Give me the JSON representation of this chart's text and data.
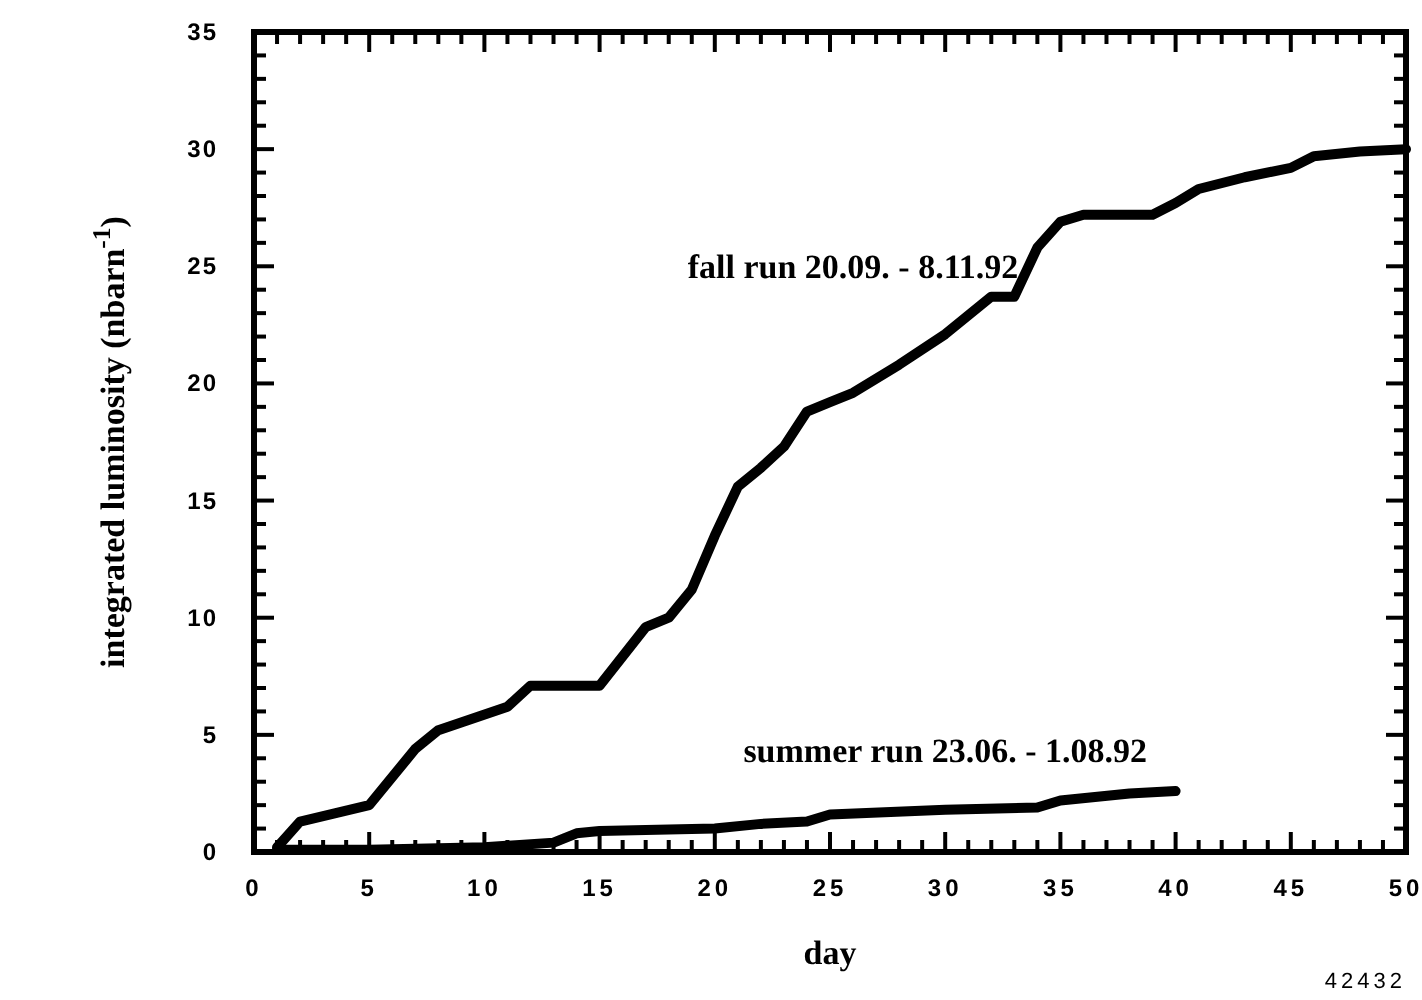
{
  "chart_data": {
    "type": "line",
    "xlabel": "day",
    "ylabel": "integrated luminosity (nbarn$^{-1}$)",
    "annotations": [
      "42432"
    ],
    "xlim": [
      0,
      50
    ],
    "ylim": [
      0,
      35
    ],
    "xticks": [
      0,
      {
        "value": 1,
        "label": null
      },
      {
        "value": 2,
        "label": null
      },
      {
        "value": 3,
        "label": null
      },
      {
        "value": 4,
        "label": null
      },
      5,
      {
        "value": 6,
        "label": null
      },
      {
        "value": 7,
        "label": null
      },
      {
        "value": 8,
        "label": null
      },
      {
        "value": 9,
        "label": null
      },
      10,
      {
        "value": 11,
        "label": null
      },
      {
        "value": 12,
        "label": null
      },
      {
        "value": 13,
        "label": null
      },
      {
        "value": 14,
        "label": null
      },
      15,
      {
        "value": 16,
        "label": null
      },
      {
        "value": 17,
        "label": null
      },
      {
        "value": 18,
        "label": null
      },
      {
        "value": 19,
        "label": null
      },
      20,
      {
        "value": 21,
        "label": null
      },
      {
        "value": 22,
        "label": null
      },
      {
        "value": 23,
        "label": null
      },
      {
        "value": 24,
        "label": null
      },
      25,
      {
        "value": 26,
        "label": null
      },
      {
        "value": 27,
        "label": null
      },
      {
        "value": 28,
        "label": null
      },
      {
        "value": 29,
        "label": null
      },
      30,
      {
        "value": 31,
        "label": null
      },
      {
        "value": 32,
        "label": null
      },
      {
        "value": 33,
        "label": null
      },
      {
        "value": 34,
        "label": null
      },
      35,
      {
        "value": 36,
        "label": null
      },
      {
        "value": 37,
        "label": null
      },
      {
        "value": 38,
        "label": null
      },
      {
        "value": 39,
        "label": null
      },
      40,
      {
        "value": 41,
        "label": null
      },
      {
        "value": 42,
        "label": null
      },
      {
        "value": 43,
        "label": null
      },
      {
        "value": 44,
        "label": null
      },
      45,
      {
        "value": 46,
        "label": null
      },
      {
        "value": 47,
        "label": null
      },
      {
        "value": 48,
        "label": null
      },
      {
        "value": 49,
        "label": null
      },
      50
    ],
    "yticks": [
      0,
      {
        "value": 1,
        "label": null
      },
      {
        "value": 2,
        "label": null
      },
      {
        "value": 3,
        "label": null
      },
      {
        "value": 4,
        "label": null
      },
      5,
      {
        "value": 6,
        "label": null
      },
      {
        "value": 7,
        "label": null
      },
      {
        "value": 8,
        "label": null
      },
      {
        "value": 9,
        "label": null
      },
      10,
      {
        "value": 11,
        "label": null
      },
      {
        "value": 12,
        "label": null
      },
      {
        "value": 13,
        "label": null
      },
      {
        "value": 14,
        "label": null
      },
      15,
      {
        "value": 16,
        "label": null
      },
      {
        "value": 17,
        "label": null
      },
      {
        "value": 18,
        "label": null
      },
      {
        "value": 19,
        "label": null
      },
      20,
      {
        "value": 21,
        "label": null
      },
      {
        "value": 22,
        "label": null
      },
      {
        "value": 23,
        "label": null
      },
      {
        "value": 24,
        "label": null
      },
      25,
      {
        "value": 26,
        "label": null
      },
      {
        "value": 27,
        "label": null
      },
      {
        "value": 28,
        "label": null
      },
      {
        "value": 29,
        "label": null
      },
      30,
      {
        "value": 31,
        "label": null
      },
      {
        "value": 32,
        "label": null
      },
      {
        "value": 33,
        "label": null
      },
      {
        "value": 34,
        "label": null
      },
      35
    ],
    "grid": false,
    "marker": "none",
    "line_style": "solid",
    "series": [
      {
        "name": "fall run 20.09. - 8.11.92",
        "color": "#000000",
        "x": [
          1,
          2,
          5,
          7,
          8,
          11,
          12,
          15,
          17,
          18,
          19,
          20,
          21,
          22,
          23,
          24,
          25,
          26,
          28,
          30,
          32,
          33,
          34,
          35,
          36,
          39,
          40,
          41,
          43,
          45,
          46,
          48,
          50
        ],
        "values": [
          0.2,
          1.3,
          2.0,
          4.4,
          5.2,
          6.2,
          7.1,
          7.1,
          9.6,
          10.0,
          11.2,
          13.5,
          15.6,
          16.4,
          17.3,
          18.8,
          19.2,
          19.6,
          20.8,
          22.1,
          23.7,
          23.7,
          25.8,
          26.9,
          27.2,
          27.2,
          27.7,
          28.3,
          28.8,
          29.2,
          29.7,
          29.9,
          30.0
        ]
      },
      {
        "name": "summer run 23.06. - 1.08.92",
        "color": "#000000",
        "x": [
          1,
          5,
          10,
          13,
          14,
          15,
          20,
          22,
          24,
          25,
          30,
          34,
          35,
          38,
          40
        ],
        "values": [
          0.1,
          0.1,
          0.2,
          0.4,
          0.8,
          0.9,
          1.0,
          1.2,
          1.3,
          1.6,
          1.8,
          1.9,
          2.2,
          2.5,
          2.6
        ]
      }
    ]
  }
}
